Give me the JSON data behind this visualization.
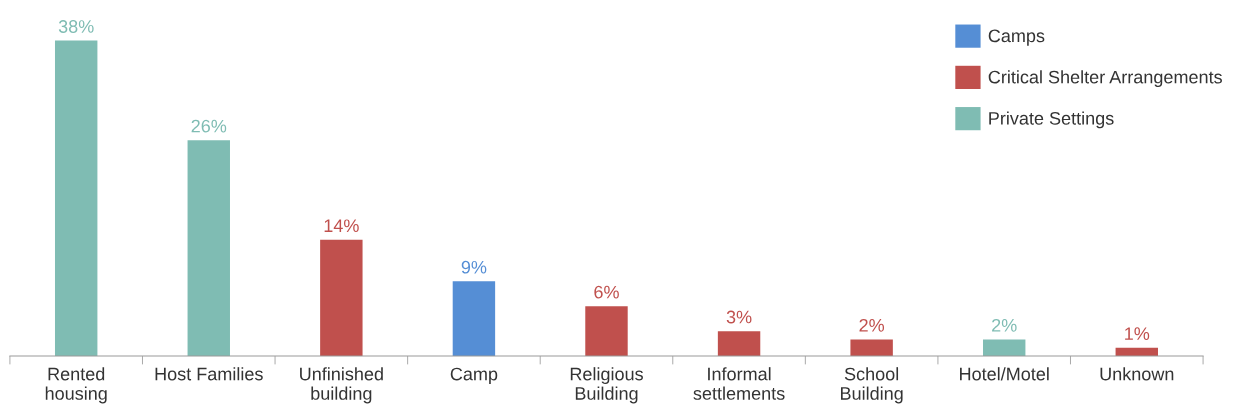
{
  "chart_data": {
    "type": "bar",
    "categories": [
      "Rented\nhousing",
      "Host Families",
      "Unfinished\nbuilding",
      "Camp",
      "Religious\nBuilding",
      "Informal\nsettlements",
      "School\nBuilding",
      "Hotel/Motel",
      "Unknown"
    ],
    "series": [
      {
        "name": "Camps",
        "color": "#558ed5",
        "values": [
          null,
          null,
          null,
          9,
          null,
          null,
          null,
          null,
          null
        ],
        "value_labels": [
          null,
          null,
          null,
          "9%",
          null,
          null,
          null,
          null,
          null
        ]
      },
      {
        "name": "Critical Shelter Arrangements",
        "color": "#c0504d",
        "values": [
          null,
          null,
          14,
          null,
          6,
          3,
          2,
          null,
          1
        ],
        "value_labels": [
          null,
          null,
          "14%",
          null,
          "6%",
          "3%",
          "2%",
          null,
          "1%"
        ]
      },
      {
        "name": "Private Settings",
        "color": "#7fbcb3",
        "values": [
          38,
          26,
          null,
          null,
          null,
          null,
          null,
          2,
          null
        ],
        "value_labels": [
          "38%",
          "26%",
          null,
          null,
          null,
          null,
          null,
          "2%",
          null
        ]
      }
    ],
    "legend": "top right"
  }
}
